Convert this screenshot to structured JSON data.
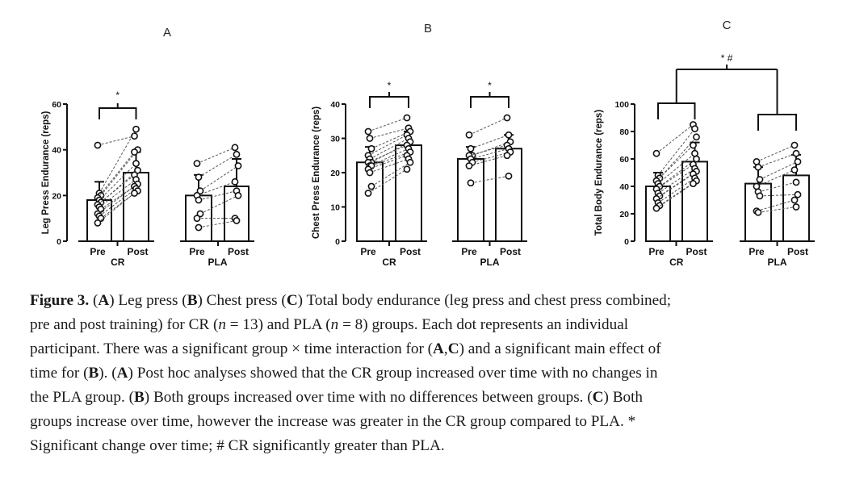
{
  "chart_data": [
    {
      "type": "bar",
      "panel": "A",
      "ylabel": "Leg Press Endurance (reps)",
      "ylim": [
        0,
        60
      ],
      "yticks": [
        0,
        20,
        40,
        60
      ],
      "groups": [
        "CR",
        "PLA"
      ],
      "categories": [
        "Pre",
        "Post"
      ],
      "series": [
        {
          "group": "CR",
          "mean": [
            18,
            30
          ],
          "sd": [
            8,
            9
          ]
        },
        {
          "group": "PLA",
          "mean": [
            20,
            24
          ],
          "sd": [
            9,
            12
          ]
        }
      ],
      "individuals": {
        "CR": [
          [
            42,
            46
          ],
          [
            21,
            49
          ],
          [
            20,
            40
          ],
          [
            19,
            39
          ],
          [
            18,
            34
          ],
          [
            17,
            31
          ],
          [
            16,
            29
          ],
          [
            15,
            27
          ],
          [
            14,
            25
          ],
          [
            12,
            24
          ],
          [
            11,
            23
          ],
          [
            10,
            22
          ],
          [
            8,
            21
          ]
        ],
        "PLA": [
          [
            34,
            41
          ],
          [
            28,
            38
          ],
          [
            22,
            33
          ],
          [
            20,
            26
          ],
          [
            18,
            22
          ],
          [
            12,
            20
          ],
          [
            10,
            10
          ],
          [
            6,
            9
          ]
        ]
      },
      "annotations": [
        "*"
      ]
    },
    {
      "type": "bar",
      "panel": "B",
      "ylabel": "Chest Press Endurance (reps)",
      "ylim": [
        0,
        40
      ],
      "yticks": [
        0,
        10,
        20,
        30,
        40
      ],
      "groups": [
        "CR",
        "PLA"
      ],
      "categories": [
        "Pre",
        "Post"
      ],
      "series": [
        {
          "group": "CR",
          "mean": [
            23,
            28
          ],
          "sd": [
            4.5,
            4
          ]
        },
        {
          "group": "PLA",
          "mean": [
            24,
            27
          ],
          "sd": [
            3.5,
            4
          ]
        }
      ],
      "individuals": {
        "CR": [
          [
            32,
            36
          ],
          [
            30,
            33
          ],
          [
            27,
            32
          ],
          [
            25,
            31
          ],
          [
            24,
            30
          ],
          [
            23,
            29
          ],
          [
            23,
            28
          ],
          [
            22,
            27
          ],
          [
            22,
            26
          ],
          [
            21,
            25
          ],
          [
            20,
            24
          ],
          [
            16,
            23
          ],
          [
            14,
            21
          ]
        ],
        "PLA": [
          [
            31,
            36
          ],
          [
            27,
            31
          ],
          [
            25,
            29
          ],
          [
            25,
            28
          ],
          [
            24,
            27
          ],
          [
            23,
            26
          ],
          [
            22,
            25
          ],
          [
            17,
            19
          ]
        ]
      },
      "annotations": [
        "*",
        "*"
      ]
    },
    {
      "type": "bar",
      "panel": "C",
      "ylabel": "Total Body Endurance (reps)",
      "ylim": [
        0,
        100
      ],
      "yticks": [
        0,
        20,
        40,
        60,
        80,
        100
      ],
      "groups": [
        "CR",
        "PLA"
      ],
      "categories": [
        "Pre",
        "Post"
      ],
      "series": [
        {
          "group": "CR",
          "mean": [
            40,
            58
          ],
          "sd": [
            10,
            14
          ]
        },
        {
          "group": "PLA",
          "mean": [
            42,
            48
          ],
          "sd": [
            12,
            15
          ]
        }
      ],
      "individuals": {
        "CR": [
          [
            64,
            85
          ],
          [
            48,
            82
          ],
          [
            46,
            76
          ],
          [
            44,
            70
          ],
          [
            42,
            64
          ],
          [
            40,
            60
          ],
          [
            38,
            56
          ],
          [
            35,
            53
          ],
          [
            33,
            51
          ],
          [
            31,
            49
          ],
          [
            28,
            46
          ],
          [
            26,
            44
          ],
          [
            24,
            42
          ]
        ],
        "PLA": [
          [
            58,
            70
          ],
          [
            54,
            64
          ],
          [
            45,
            58
          ],
          [
            40,
            52
          ],
          [
            36,
            43
          ],
          [
            33,
            34
          ],
          [
            22,
            30
          ],
          [
            21,
            25
          ]
        ]
      },
      "annotations": [
        "*",
        "*#"
      ]
    }
  ],
  "caption": {
    "lines": [
      [
        {
          "text": "Figure 3.",
          "style": "b"
        },
        {
          "text": " ("
        },
        {
          "text": "A",
          "style": "b"
        },
        {
          "text": ") Leg press ("
        },
        {
          "text": "B",
          "style": "b"
        },
        {
          "text": ") Chest press ("
        },
        {
          "text": "C",
          "style": "b"
        },
        {
          "text": ") Total body endurance (leg press and chest press combined;"
        }
      ],
      [
        {
          "text": "pre and post training) for CR ("
        },
        {
          "text": "n",
          "style": "i"
        },
        {
          "text": " = 13) and PLA ("
        },
        {
          "text": "n",
          "style": "i"
        },
        {
          "text": " = 8) groups.  Each dot represents an individual"
        }
      ],
      [
        {
          "text": "participant. There was a significant group × time interaction for ("
        },
        {
          "text": "A",
          "style": "b"
        },
        {
          "text": ","
        },
        {
          "text": "C",
          "style": "b"
        },
        {
          "text": ") and a significant main effect of"
        }
      ],
      [
        {
          "text": "time for ("
        },
        {
          "text": "B",
          "style": "b"
        },
        {
          "text": "). ("
        },
        {
          "text": "A",
          "style": "b"
        },
        {
          "text": ") Post hoc analyses showed that the CR group increased over time with no changes in"
        }
      ],
      [
        {
          "text": "the PLA group.  ("
        },
        {
          "text": "B",
          "style": "b"
        },
        {
          "text": ") Both groups increased over time with no differences between groups.  ("
        },
        {
          "text": "C",
          "style": "b"
        },
        {
          "text": ") Both"
        }
      ],
      [
        {
          "text": "groups increase over time, however the increase was greater in the CR group compared to PLA. *"
        }
      ],
      [
        {
          "text": "Significant change over time; # CR significantly greater than PLA."
        }
      ]
    ]
  }
}
